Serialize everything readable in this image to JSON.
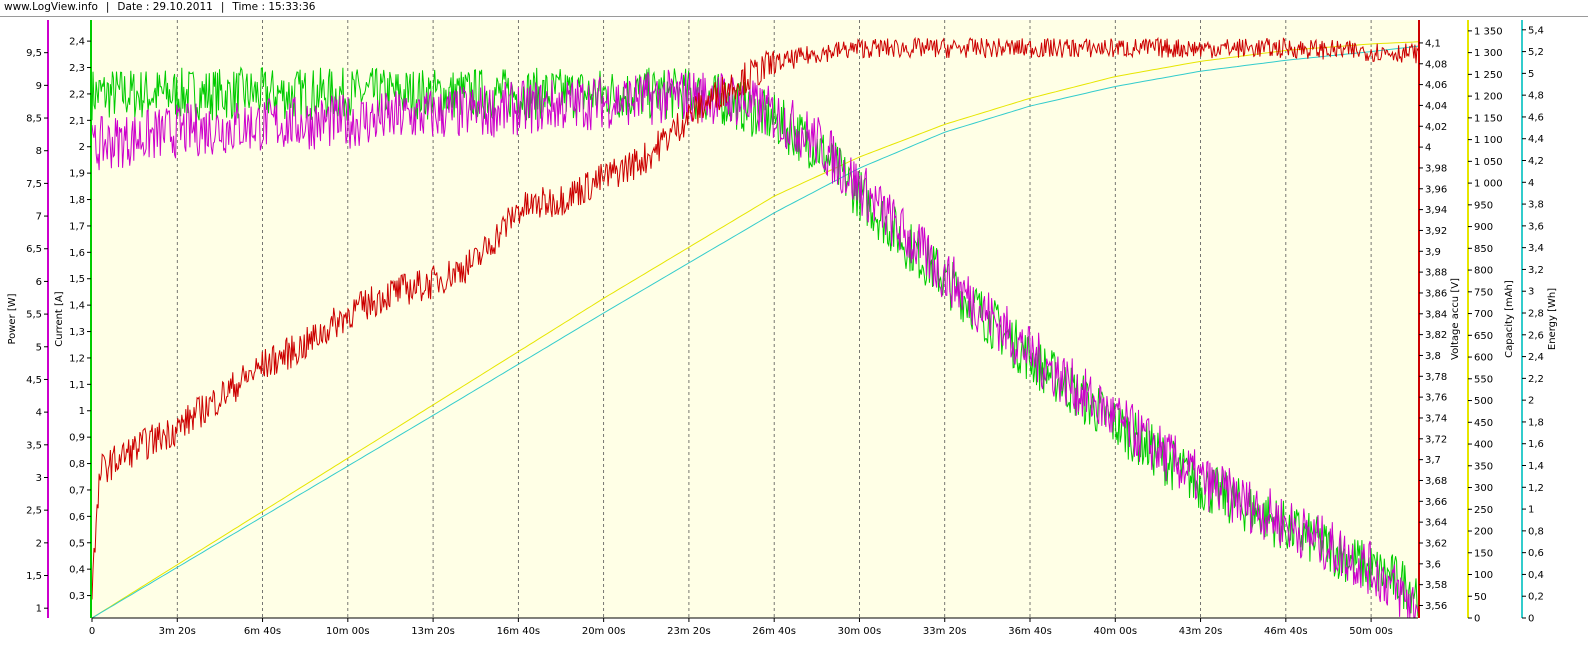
{
  "header": {
    "site": "www.LogView.info",
    "date": "Date : 29.10.2011",
    "time": "Time : 15:33:36"
  },
  "colors": {
    "plot_background": "#ffffe6",
    "power": "#cc00cc",
    "current": "#00cc00",
    "voltage": "#cc0000",
    "capacity": "#e6e600",
    "energy": "#33cccc"
  },
  "chart_data": {
    "type": "line",
    "grid": "vertical dashed lines at each x tick",
    "x": {
      "unit": "seconds",
      "range": [
        0,
        3110
      ],
      "tick_values": [
        0,
        200,
        400,
        600,
        800,
        1000,
        1200,
        1400,
        1600,
        1800,
        2000,
        2200,
        2400,
        2600,
        2800,
        3000
      ],
      "tick_labels": [
        "0",
        "3m 20s",
        "6m 40s",
        "10m 00s",
        "13m 20s",
        "16m 40s",
        "20m 00s",
        "23m 20s",
        "26m 40s",
        "30m 00s",
        "33m 20s",
        "36m 40s",
        "40m 00s",
        "43m 20s",
        "46m 40s",
        "50m 00s"
      ]
    },
    "axes": {
      "power": {
        "label": "Power [W]",
        "range": [
          0.85,
          10.0
        ],
        "ticks": [
          "1",
          "1,5",
          "2",
          "2,5",
          "3",
          "3,5",
          "4",
          "4,5",
          "5",
          "5,5",
          "6",
          "6,5",
          "7",
          "7,5",
          "8",
          "8,5",
          "9",
          "9,5"
        ]
      },
      "current": {
        "label": "Current [A]",
        "range": [
          0.215,
          2.48
        ],
        "ticks": [
          "0,3",
          "0,4",
          "0,5",
          "0,6",
          "0,7",
          "0,8",
          "0,9",
          "1",
          "1,1",
          "1,2",
          "1,3",
          "1,4",
          "1,5",
          "1,6",
          "1,7",
          "1,8",
          "1,9",
          "2",
          "2,1",
          "2,2",
          "2,3",
          "2,4"
        ]
      },
      "voltage": {
        "label": "Voltage accu [V]",
        "range": [
          3.548,
          4.122
        ],
        "ticks": [
          "3,56",
          "3,58",
          "3,6",
          "3,62",
          "3,64",
          "3,66",
          "3,68",
          "3,7",
          "3,72",
          "3,74",
          "3,76",
          "3,78",
          "3,8",
          "3,82",
          "3,84",
          "3,86",
          "3,88",
          "3,9",
          "3,92",
          "3,94",
          "3,96",
          "3,98",
          "4",
          "4,02",
          "4,04",
          "4,06",
          "4,08",
          "4,1"
        ]
      },
      "capacity": {
        "label": "Capacity [mAh]",
        "range": [
          0,
          1375
        ],
        "ticks": [
          "0",
          "50",
          "100",
          "150",
          "200",
          "250",
          "300",
          "350",
          "400",
          "450",
          "500",
          "550",
          "600",
          "650",
          "700",
          "750",
          "800",
          "850",
          "900",
          "950",
          "1 000",
          "1 050",
          "1 100",
          "1 150",
          "1 200",
          "1 250",
          "1 300",
          "1 350"
        ]
      },
      "energy": {
        "label": "Energy [Wh]",
        "range": [
          0,
          5.49
        ],
        "ticks": [
          "0",
          "0,2",
          "0,4",
          "0,6",
          "0,8",
          "1",
          "1,2",
          "1,4",
          "1,6",
          "1,8",
          "2",
          "2,2",
          "2,4",
          "2,6",
          "2,8",
          "3",
          "3,2",
          "3,4",
          "3,6",
          "3,8",
          "4",
          "4,2",
          "4,4",
          "4,6",
          "4,8",
          "5",
          "5,2",
          "5,4"
        ]
      }
    },
    "series": [
      {
        "name": "Voltage accu [V]",
        "axis": "voltage",
        "x": [
          0,
          20,
          100,
          200,
          300,
          400,
          500,
          600,
          700,
          800,
          900,
          1000,
          1100,
          1200,
          1300,
          1400,
          1500,
          1600,
          1700,
          1800,
          2000,
          2400,
          2800,
          3110
        ],
        "y": [
          3.58,
          3.69,
          3.71,
          3.73,
          3.76,
          3.79,
          3.81,
          3.84,
          3.86,
          3.87,
          3.89,
          3.94,
          3.95,
          3.97,
          3.99,
          4.03,
          4.06,
          4.08,
          4.09,
          4.095,
          4.095,
          4.095,
          4.095,
          4.09
        ]
      },
      {
        "name": "Current [A]",
        "axis": "current",
        "x": [
          0,
          50,
          200,
          400,
          600,
          800,
          1000,
          1200,
          1400,
          1500,
          1600,
          1700,
          1800,
          1900,
          2000,
          2200,
          2400,
          2600,
          2800,
          3000,
          3110
        ],
        "y": [
          2.2,
          2.2,
          2.2,
          2.2,
          2.2,
          2.2,
          2.2,
          2.2,
          2.2,
          2.17,
          2.1,
          2.0,
          1.82,
          1.65,
          1.5,
          1.2,
          0.95,
          0.72,
          0.56,
          0.4,
          0.32
        ]
      },
      {
        "name": "Power [W]",
        "axis": "power",
        "x": [
          0,
          20,
          200,
          400,
          600,
          800,
          1000,
          1200,
          1400,
          1500,
          1600,
          1700,
          1800,
          1900,
          2000,
          2200,
          2400,
          2600,
          2800,
          3000,
          3110
        ],
        "y": [
          8.0,
          8.1,
          8.3,
          8.4,
          8.45,
          8.55,
          8.65,
          8.75,
          8.85,
          8.8,
          8.55,
          8.15,
          7.45,
          6.75,
          6.1,
          4.9,
          3.9,
          2.95,
          2.3,
          1.6,
          1.0
        ]
      },
      {
        "name": "Capacity [mAh]",
        "axis": "capacity",
        "x": [
          0,
          400,
          800,
          1200,
          1600,
          1800,
          2000,
          2200,
          2400,
          2600,
          2800,
          3000,
          3110
        ],
        "y": [
          0,
          245,
          490,
          735,
          970,
          1060,
          1135,
          1195,
          1245,
          1280,
          1305,
          1320,
          1325
        ]
      },
      {
        "name": "Energy [Wh]",
        "axis": "energy",
        "x": [
          0,
          400,
          800,
          1200,
          1600,
          1800,
          2000,
          2200,
          2400,
          2600,
          2800,
          3000,
          3110
        ],
        "y": [
          0,
          0.93,
          1.86,
          2.8,
          3.72,
          4.13,
          4.46,
          4.7,
          4.88,
          5.02,
          5.12,
          5.2,
          5.25
        ]
      }
    ]
  }
}
